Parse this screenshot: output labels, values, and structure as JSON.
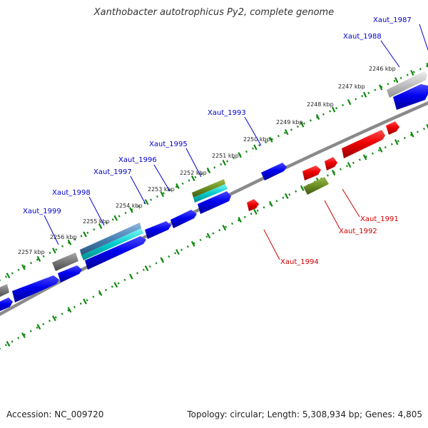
{
  "title": "Xanthobacter autotrophicus Py2, complete genome",
  "footer": {
    "accession": "Accession: NC_009720",
    "summary": "Topology: circular; Length: 5,308,934 bp; Genes: 4,805"
  },
  "colors": {
    "backbone": "#888888",
    "tick": "#118811",
    "forward_label": "#0000cc",
    "reverse_label": "#cc0000",
    "cds_blue": "#0000ee",
    "cds_red": "#ee0000",
    "cds_olive": "#6b8e23",
    "cds_cyan": "#00cccc",
    "cds_steel": "#4682b4",
    "cds_gray": "#777777",
    "cds_light_gray": "#c0c0c0"
  },
  "kbp_ticks": [
    "2246 kbp",
    "2247 kbp",
    "2248 kbp",
    "2249 kbp",
    "2250 kbp",
    "2251 kbp",
    "2252 kbp",
    "2253 kbp",
    "2254 kbp",
    "2255 kbp",
    "2256 kbp",
    "2257 kbp"
  ],
  "gene_labels": {
    "forward": [
      "Xaut_1987",
      "Xaut_1988",
      "Xaut_1993",
      "Xaut_1995",
      "Xaut_1996",
      "Xaut_1997",
      "Xaut_1998",
      "Xaut_1999"
    ],
    "reverse": [
      "Xaut_1991",
      "Xaut_1992",
      "Xaut_1994"
    ]
  }
}
